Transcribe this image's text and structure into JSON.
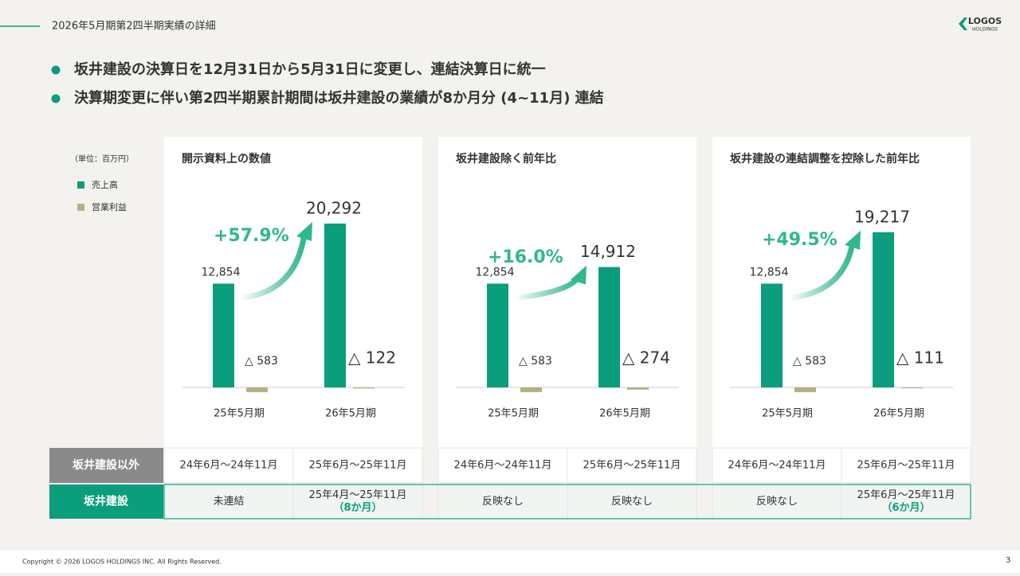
{
  "header": {
    "title": "2026年5月期第2四半期実績の詳細",
    "logo": [
      "LOGOS",
      "HOLDINGS"
    ]
  },
  "bullets": [
    "坂井建設の決算日を12月31日から5月31日に変更し、連結決算日に統一",
    "決算期変更に伴い第2四半期累計期間は坂井建設の業績が8か月分 (4~11月) 連結"
  ],
  "unit": "（単位：百万円）",
  "legend": [
    {
      "name": "売上高",
      "color": "#0a9e7c"
    },
    {
      "name": "営業利益",
      "color": "#b5b083"
    }
  ],
  "chart_data": [
    {
      "type": "bar",
      "title": "開示資料上の数値",
      "categories": [
        "25年5月期",
        "26年5月期"
      ],
      "series": [
        {
          "values": [
            12854,
            20292
          ],
          "value_labels": [
            "12,854",
            "20,292"
          ]
        },
        {
          "values": [
            -583,
            -122
          ],
          "value_labels": [
            "△ 583",
            "△ 122"
          ]
        }
      ],
      "annotation": "+57.9%"
    },
    {
      "type": "bar",
      "title": "坂井建設除く前年比",
      "categories": [
        "25年5月期",
        "26年5月期"
      ],
      "series": [
        {
          "values": [
            12854,
            14912
          ],
          "value_labels": [
            "12,854",
            "14,912"
          ]
        },
        {
          "values": [
            -583,
            -274
          ],
          "value_labels": [
            "△ 583",
            "△ 274"
          ]
        }
      ],
      "annotation": "+16.0%"
    },
    {
      "type": "bar",
      "title": "坂井建設の連結調整を控除した前年比",
      "categories": [
        "25年5月期",
        "26年5月期"
      ],
      "series": [
        {
          "values": [
            12854,
            19217
          ],
          "value_labels": [
            "12,854",
            "19,217"
          ]
        },
        {
          "values": [
            -583,
            -111
          ],
          "value_labels": [
            "△ 583",
            "△ 111"
          ]
        }
      ],
      "annotation": "+49.5%"
    }
  ],
  "table": {
    "rows": [
      {
        "label": "坂井建設以外",
        "cells": [
          [
            "24年6月～24年11月"
          ],
          [
            "25年6月～25年11月"
          ],
          [
            "24年6月～24年11月"
          ],
          [
            "25年6月～25年11月"
          ],
          [
            "24年6月～24年11月"
          ],
          [
            "25年6月～25年11月"
          ]
        ]
      },
      {
        "label": "坂井建設",
        "cells": [
          [
            "未連結"
          ],
          [
            "25年4月～25年11月",
            "（8か月）"
          ],
          [
            "反映なし"
          ],
          [
            "反映なし"
          ],
          [
            "反映なし"
          ],
          [
            "25年6月～25年11月",
            "（6か月）"
          ]
        ]
      }
    ]
  },
  "footer": {
    "copyright": "Copyright © 2026 LOGOS HOLDINGS INC. All Rights Reserved.",
    "page": "3"
  }
}
